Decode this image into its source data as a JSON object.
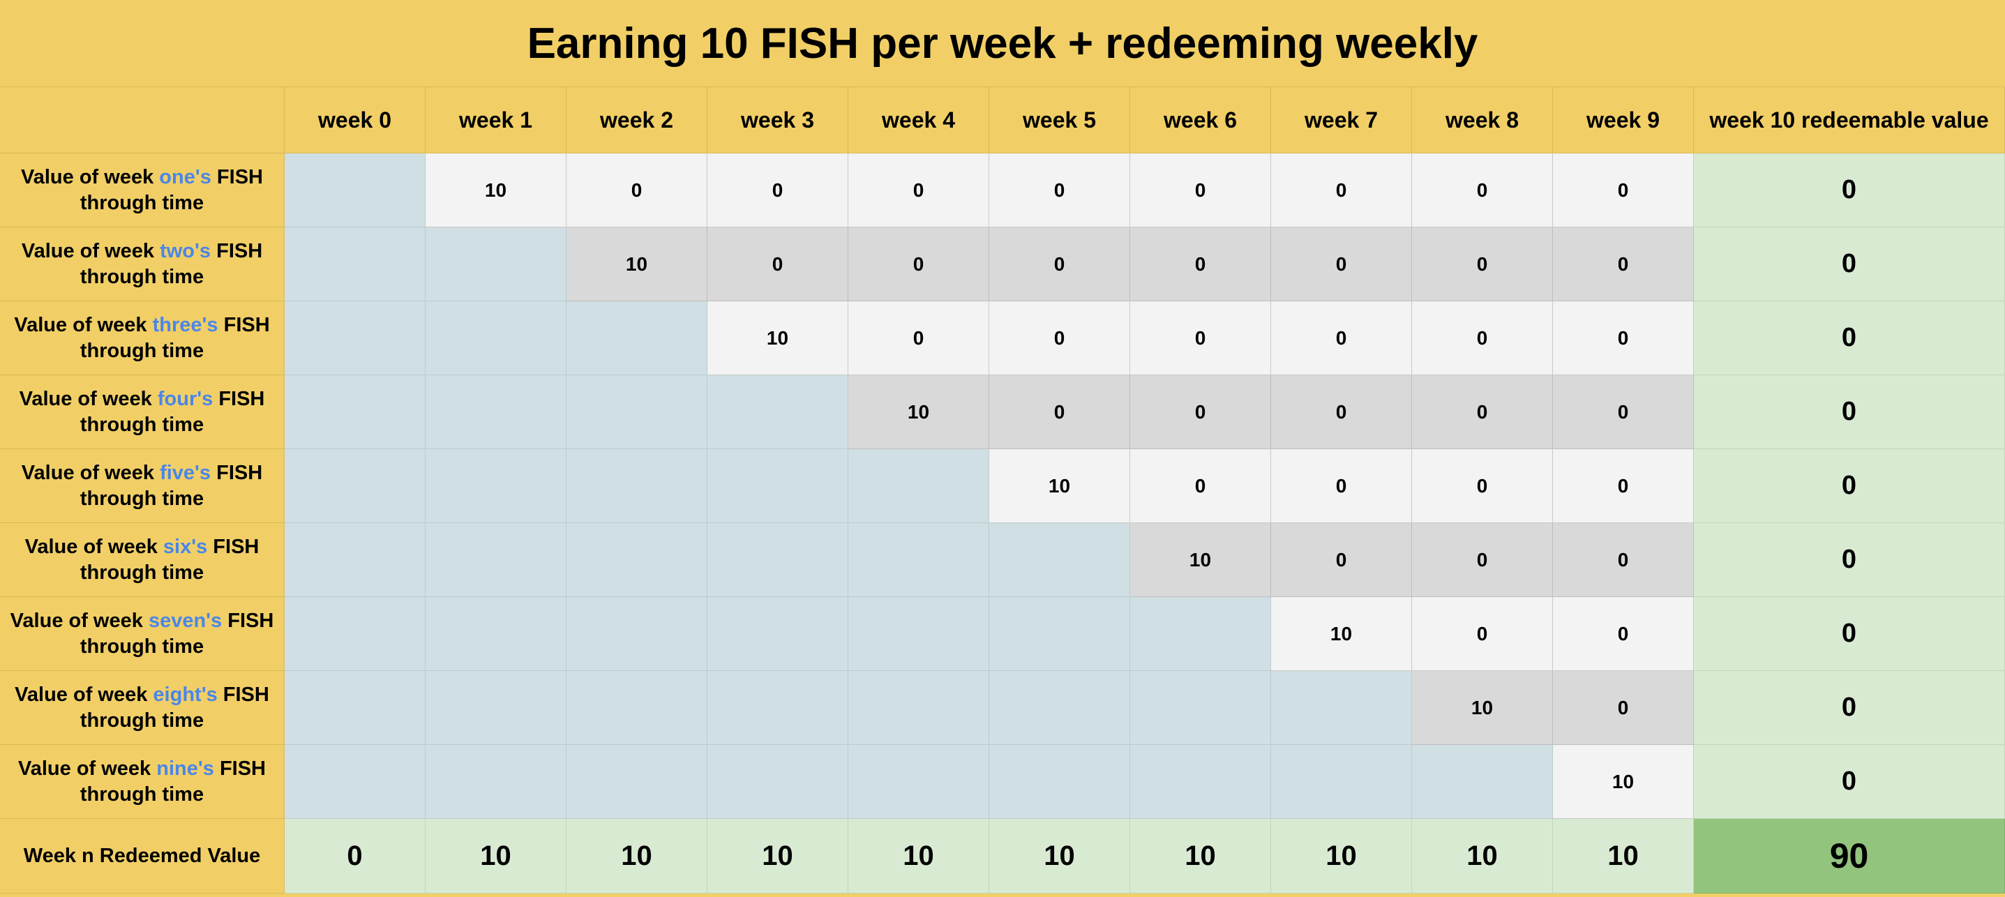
{
  "title": "Earning 10 FISH per week + redeeming weekly",
  "header": {
    "weeks": [
      "week 0",
      "week 1",
      "week 2",
      "week 3",
      "week 4",
      "week 5",
      "week 6",
      "week 7",
      "week 8",
      "week 9"
    ],
    "redeemable": "week 10 redeemable value"
  },
  "rows": [
    {
      "prefix": "Value of week ",
      "ordinal": "one's",
      "suffix": " FISH through time",
      "start": 1,
      "values": [
        "10",
        "0",
        "0",
        "0",
        "0",
        "0",
        "0",
        "0",
        "0"
      ],
      "total": "0"
    },
    {
      "prefix": "Value of week ",
      "ordinal": "two's",
      "suffix": " FISH through time",
      "start": 2,
      "values": [
        "10",
        "0",
        "0",
        "0",
        "0",
        "0",
        "0",
        "0"
      ],
      "total": "0"
    },
    {
      "prefix": "Value of week ",
      "ordinal": "three's",
      "suffix": " FISH through time",
      "start": 3,
      "values": [
        "10",
        "0",
        "0",
        "0",
        "0",
        "0",
        "0"
      ],
      "total": "0"
    },
    {
      "prefix": "Value of week ",
      "ordinal": "four's",
      "suffix": " FISH through time",
      "start": 4,
      "values": [
        "10",
        "0",
        "0",
        "0",
        "0",
        "0"
      ],
      "total": "0"
    },
    {
      "prefix": "Value of week ",
      "ordinal": "five's",
      "suffix": " FISH through time",
      "start": 5,
      "values": [
        "10",
        "0",
        "0",
        "0",
        "0"
      ],
      "total": "0"
    },
    {
      "prefix": "Value of week ",
      "ordinal": "six's",
      "suffix": " FISH through time",
      "start": 6,
      "values": [
        "10",
        "0",
        "0",
        "0"
      ],
      "total": "0"
    },
    {
      "prefix": "Value of week ",
      "ordinal": "seven's",
      "suffix": " FISH through time",
      "start": 7,
      "values": [
        "10",
        "0",
        "0"
      ],
      "total": "0"
    },
    {
      "prefix": "Value of week ",
      "ordinal": "eight's",
      "suffix": " FISH through time",
      "start": 8,
      "values": [
        "10",
        "0"
      ],
      "total": "0"
    },
    {
      "prefix": "Value of week ",
      "ordinal": "nine's",
      "suffix": " FISH through time",
      "start": 9,
      "values": [
        "10"
      ],
      "total": "0"
    }
  ],
  "footer": {
    "label": "Week n Redeemed Value",
    "values": [
      "0",
      "10",
      "10",
      "10",
      "10",
      "10",
      "10",
      "10",
      "10",
      "10"
    ],
    "grand_total": "90"
  },
  "colors": {
    "header_bg": "#f1cf66",
    "ordinal_text": "#4a86e8",
    "empty_cell": "#d0dfe3",
    "row_light": "#f3f3f3",
    "row_dark": "#d9d9d9",
    "total_bg": "#d9ead3",
    "grand_total_bg": "#93c47d"
  }
}
